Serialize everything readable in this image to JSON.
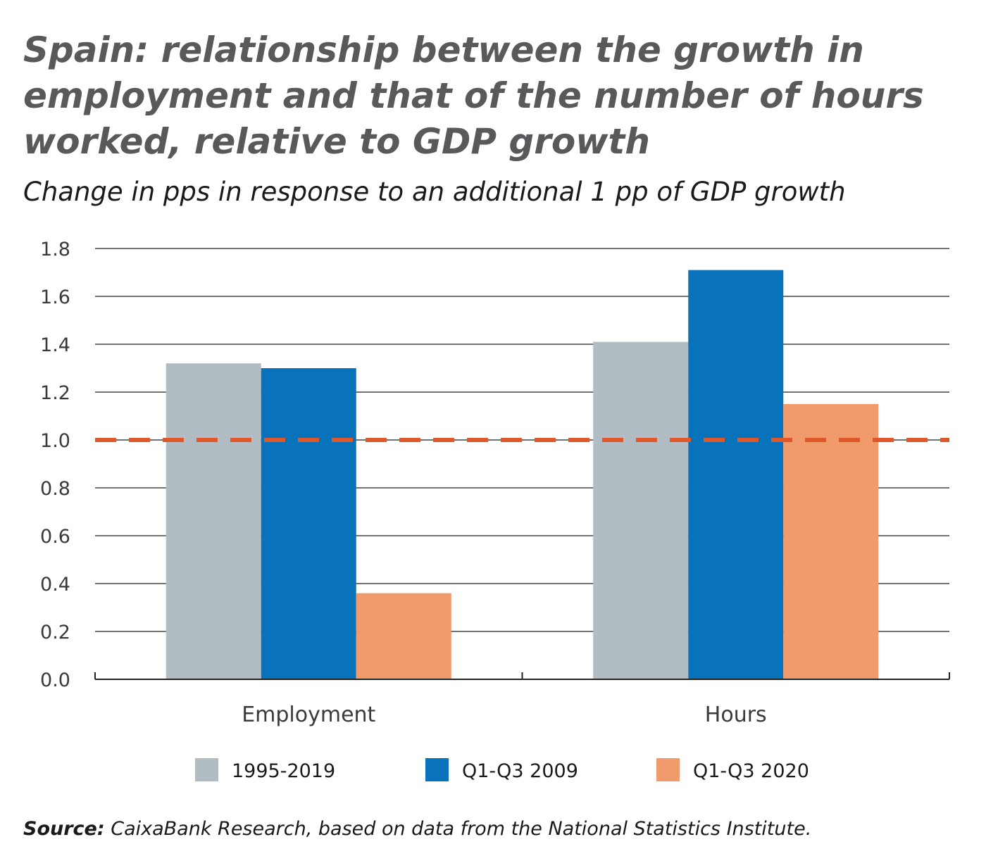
{
  "chart_data": {
    "type": "bar",
    "title_lines": [
      "Spain: relationship between the growth in",
      "employment and that of the number of hours",
      "worked, relative to GDP growth"
    ],
    "subtitle": "Change in pps in response to an additional 1 pp of GDP growth",
    "categories": [
      "Employment",
      "Hours"
    ],
    "series": [
      {
        "name": "1995-2019",
        "color": "#b1bdc2",
        "values": [
          1.32,
          1.41
        ]
      },
      {
        "name": "Q1-Q3 2009",
        "color": "#0872bb",
        "values": [
          1.3,
          1.71
        ]
      },
      {
        "name": "Q1-Q3 2020",
        "color": "#f19a6c",
        "values": [
          0.36,
          1.15
        ]
      }
    ],
    "ylim": [
      0,
      1.8
    ],
    "yticks": [
      "0.0",
      "0.2",
      "0.4",
      "0.6",
      "0.8",
      "1.0",
      "1.2",
      "1.4",
      "1.6",
      "1.8"
    ],
    "reference_line": {
      "value": 1.0,
      "style": "dashed",
      "color": "#e0572a"
    },
    "grid": true,
    "legend_placement": "bottom",
    "source_label": "Source:",
    "source_text": " CaixaBank Research, based on data from the National Statistics Institute."
  }
}
